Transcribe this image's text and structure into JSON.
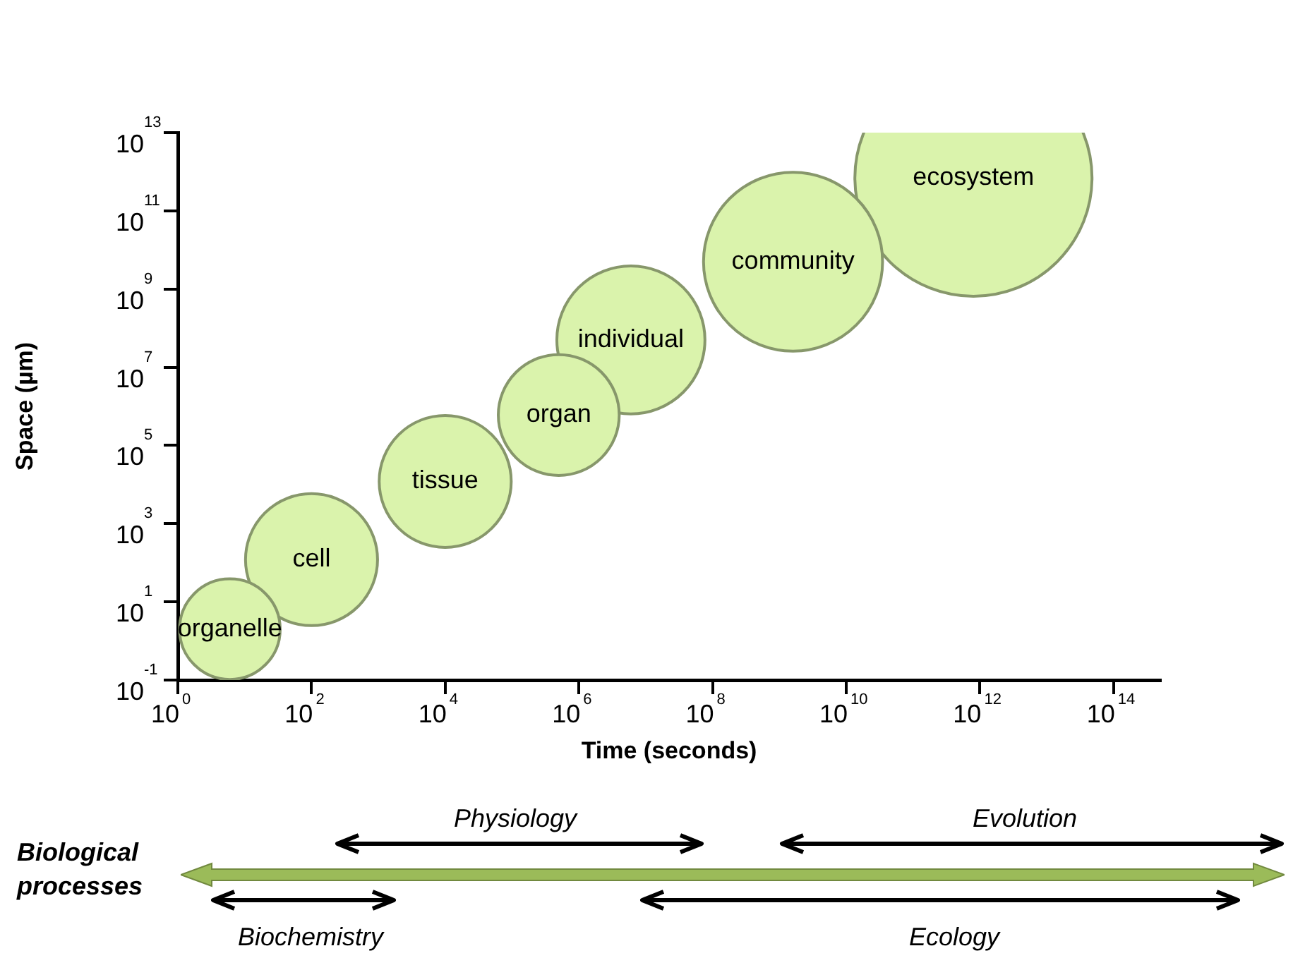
{
  "chart_data": {
    "type": "bubble",
    "xlabel": "Time (seconds)",
    "ylabel": "Space (µm)",
    "series": [
      {
        "name": "organelle",
        "color": "#daf3ac",
        "x": [
          6
        ],
        "values": [
          2
        ],
        "sizes": [
          0.18
        ]
      },
      {
        "name": "cell",
        "color": "#daf3ac",
        "x": [
          100
        ],
        "values": [
          120
        ],
        "sizes": [
          0.31
        ]
      },
      {
        "name": "tissue",
        "color": "#daf3ac",
        "x": [
          10000
        ],
        "values": [
          12000
        ],
        "sizes": [
          0.31
        ]
      },
      {
        "name": "organ",
        "color": "#daf3ac",
        "x": [
          500000
        ],
        "values": [
          600000
        ],
        "sizes": [
          0.26
        ]
      },
      {
        "name": "individual",
        "color": "#daf3ac",
        "x": [
          6000000
        ],
        "values": [
          50000000
        ],
        "sizes": [
          0.39
        ]
      },
      {
        "name": "community",
        "color": "#daf3ac",
        "x": [
          1600000000
        ],
        "values": [
          5000000000
        ],
        "sizes": [
          0.57
        ]
      },
      {
        "name": "ecosystem",
        "color": "#daf3ac",
        "x": [
          800000000000
        ],
        "values": [
          700000000000
        ],
        "sizes": [
          1
        ]
      }
    ],
    "log": "xy",
    "xlim": [
      1,
      500000000000000
    ],
    "ylim": [
      0.1,
      10000000000000
    ],
    "xticks": [
      {
        "value": 1,
        "label": "10$^{0}$"
      },
      {
        "value": 100,
        "label": "10$^{2}$"
      },
      {
        "value": 10000,
        "label": "10$^{4}$"
      },
      {
        "value": 1000000,
        "label": "10$^{6}$"
      },
      {
        "value": 100000000,
        "label": "10$^{8}$"
      },
      {
        "value": 10000000000,
        "label": "10$^{10}$"
      },
      {
        "value": 1000000000000,
        "label": "10$^{12}$"
      },
      {
        "value": 100000000000000,
        "label": "10$^{14}$"
      }
    ],
    "yticks": [
      {
        "value": 0.1,
        "label": "10$^{-1}$"
      },
      {
        "value": 10,
        "label": "10$^{1}$"
      },
      {
        "value": 1000,
        "label": "10$^{3}$"
      },
      {
        "value": 100000,
        "label": "10$^{5}$"
      },
      {
        "value": 10000000,
        "label": "10$^{7}$"
      },
      {
        "value": 1000000000,
        "label": "10$^{9}$"
      },
      {
        "value": 100000000000,
        "label": "10$^{11}$"
      },
      {
        "value": 10000000000000,
        "label": "10$^{13}$"
      }
    ],
    "grid": false,
    "legend": false,
    "annotations": [
      "Physiology",
      "Evolution",
      "Biological processes",
      "Biochemistry",
      "Ecology"
    ]
  }
}
